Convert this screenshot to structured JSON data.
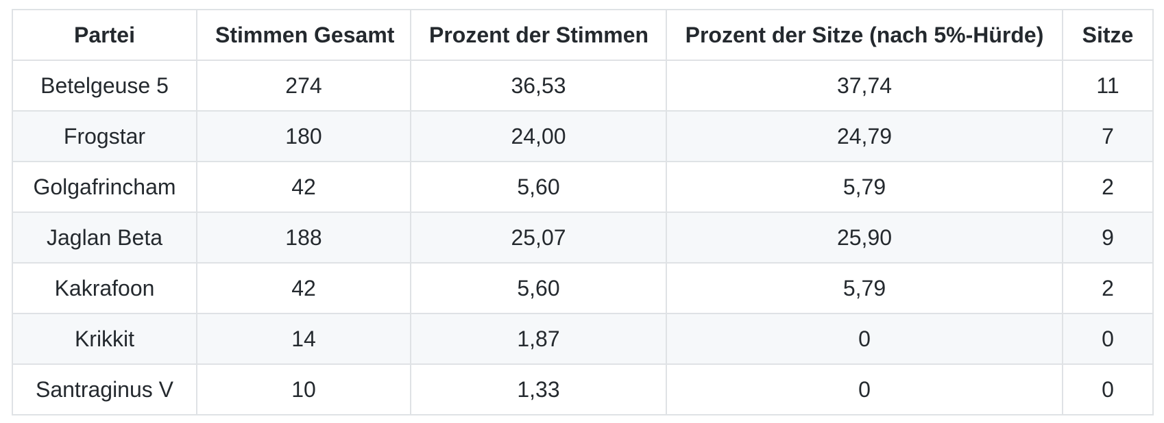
{
  "table": {
    "headers": [
      "Partei",
      "Stimmen Gesamt",
      "Prozent der Stimmen",
      "Prozent der Sitze (nach 5%-Hürde)",
      "Sitze"
    ],
    "rows": [
      [
        "Betelgeuse 5",
        "274",
        "36,53",
        "37,74",
        "11"
      ],
      [
        "Frogstar",
        "180",
        "24,00",
        "24,79",
        "7"
      ],
      [
        "Golgafrincham",
        "42",
        "5,60",
        "5,79",
        "2"
      ],
      [
        "Jaglan Beta",
        "188",
        "25,07",
        "25,90",
        "9"
      ],
      [
        "Kakrafoon",
        "42",
        "5,60",
        "5,79",
        "2"
      ],
      [
        "Krikkit",
        "14",
        "1,87",
        "0",
        "0"
      ],
      [
        "Santraginus V",
        "10",
        "1,33",
        "0",
        "0"
      ]
    ]
  },
  "colors": {
    "stripe_row_background": "#f6f8fa",
    "border": "#dfe2e5",
    "text": "#24292e",
    "page_background": "#ffffff"
  }
}
